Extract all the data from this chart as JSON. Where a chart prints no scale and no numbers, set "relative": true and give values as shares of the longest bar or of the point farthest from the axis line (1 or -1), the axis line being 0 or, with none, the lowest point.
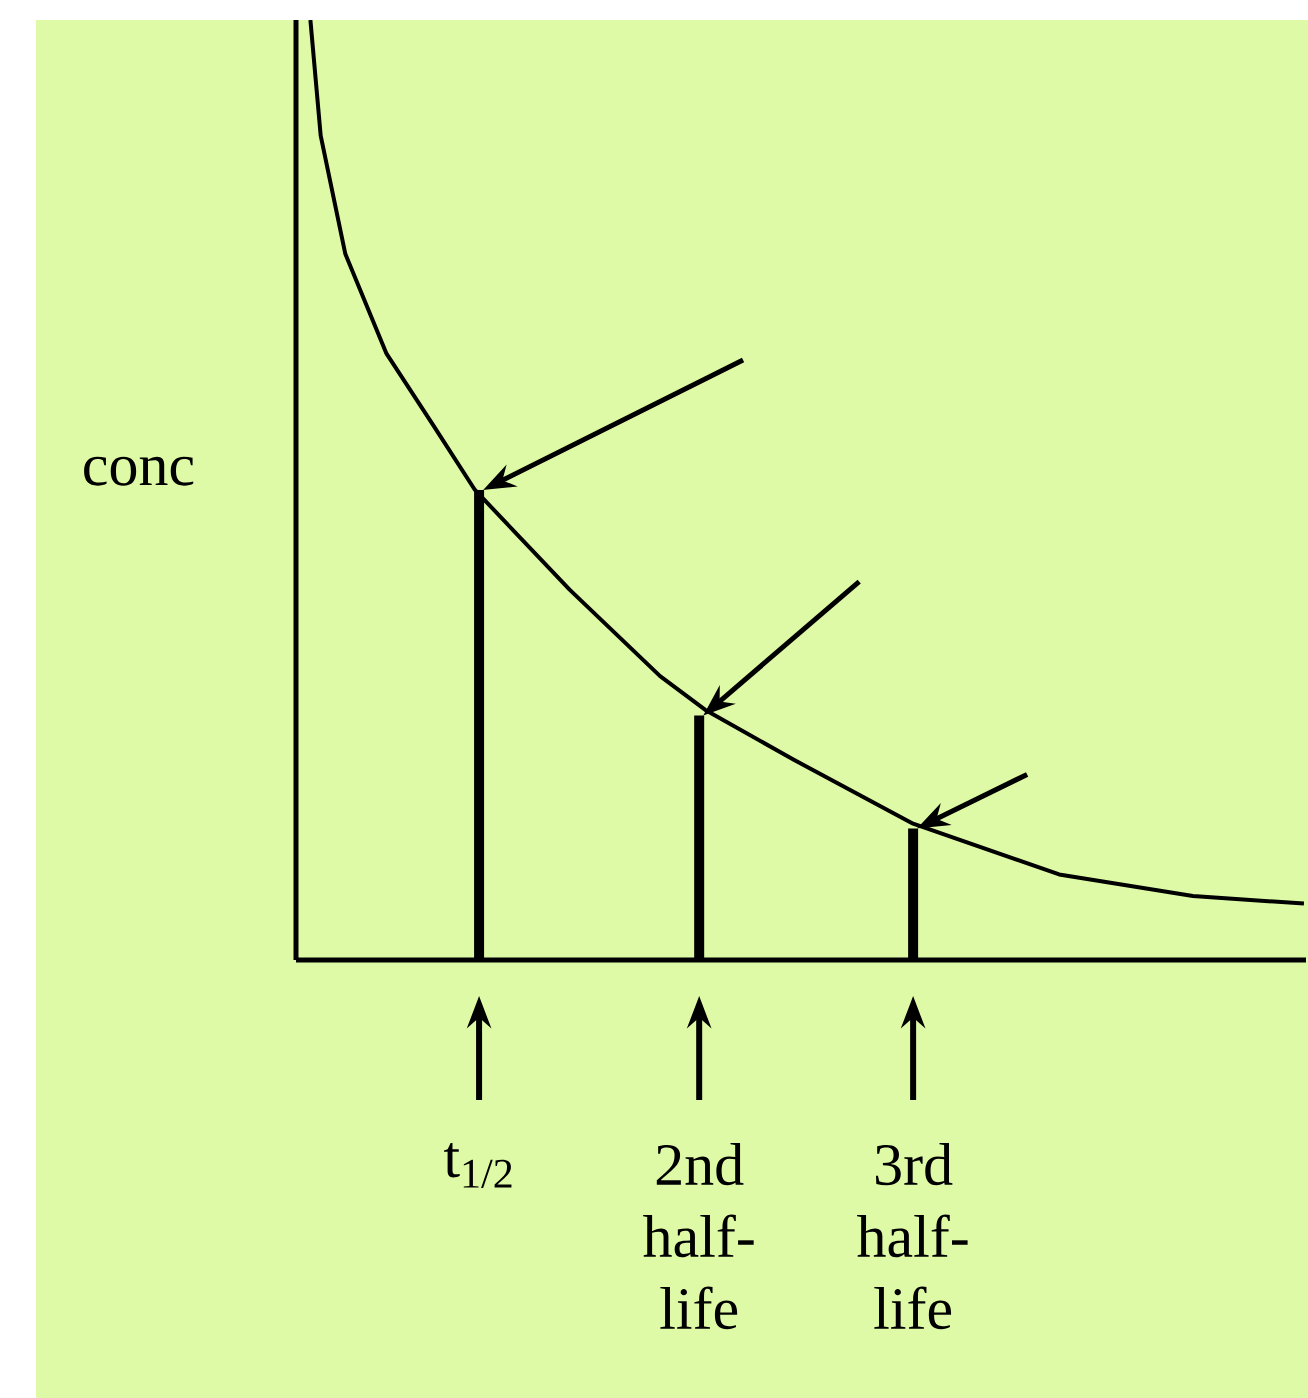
{
  "chart_data": {
    "type": "line",
    "ylabel": "conc",
    "relative": true,
    "xlim": [
      0,
      4.91
    ],
    "xticks": [
      {
        "value": 0.89,
        "label": "t$_{1/2}$"
      },
      {
        "value": 1.96,
        "label": "2nd half-life"
      },
      {
        "value": 3.0,
        "label": "3rd half-life"
      }
    ],
    "series": [
      {
        "color": "#000000",
        "x": [
          0.07,
          0.12,
          0.24,
          0.44,
          0.67,
          0.87,
          1.33,
          1.77,
          1.99,
          2.42,
          3.0,
          3.71,
          4.36,
          4.9
        ],
        "values": [
          1.0,
          0.877,
          0.751,
          0.645,
          0.568,
          0.5,
          0.394,
          0.302,
          0.266,
          0.213,
          0.145,
          0.091,
          0.068,
          0.06
        ]
      },
      {
        "type": "bar",
        "color": "#000000",
        "x": [
          0.89,
          1.96,
          3.0
        ],
        "values": [
          0.5,
          0.26,
          0.14
        ]
      }
    ]
  }
}
